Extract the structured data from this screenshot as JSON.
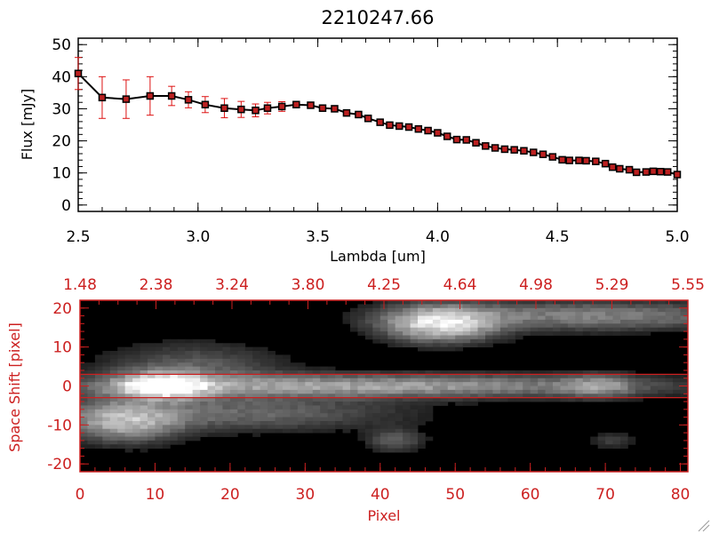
{
  "colors": {
    "background": "#ffffff",
    "axis_black": "#000000",
    "axis_red": "#cc2020",
    "error_bars": "#dd1111",
    "marker_fill": "#bb2020",
    "image_background": "#000000"
  },
  "chart_data": [
    {
      "type": "line",
      "title": "2210247.66",
      "xlabel": "Lambda [um]",
      "ylabel": "Flux [mJy]",
      "xlim": [
        2.5,
        5.0
      ],
      "ylim": [
        -2,
        52
      ],
      "xticks": [
        "2.5",
        "3.0",
        "3.5",
        "4.0",
        "4.5",
        "5.0"
      ],
      "yticks": [
        "0",
        "10",
        "20",
        "30",
        "40",
        "50"
      ],
      "grid": false,
      "series": [
        {
          "x": [
            2.5,
            2.6,
            2.7,
            2.8,
            2.89,
            2.96,
            3.03,
            3.11,
            3.18,
            3.24,
            3.29,
            3.35,
            3.41,
            3.47,
            3.52,
            3.57,
            3.62,
            3.67,
            3.71,
            3.76,
            3.8,
            3.84,
            3.88,
            3.92,
            3.96,
            4.0,
            4.04,
            4.08,
            4.12,
            4.16,
            4.2,
            4.24,
            4.28,
            4.32,
            4.36,
            4.4,
            4.44,
            4.48,
            4.52,
            4.55,
            4.59,
            4.62,
            4.66,
            4.7,
            4.73,
            4.76,
            4.8,
            4.83,
            4.87,
            4.9,
            4.93,
            4.96,
            5.0
          ],
          "y": [
            41,
            33.5,
            33,
            34,
            34,
            32.8,
            31.3,
            30.2,
            29.8,
            29.5,
            30.2,
            30.7,
            31.3,
            31.1,
            30.2,
            30.0,
            28.7,
            28.2,
            27.0,
            25.8,
            24.9,
            24.6,
            24.3,
            23.7,
            23.2,
            22.5,
            21.4,
            20.4,
            20.3,
            19.4,
            18.4,
            17.8,
            17.4,
            17.2,
            16.9,
            16.4,
            15.8,
            15.0,
            14.1,
            13.9,
            13.9,
            13.8,
            13.6,
            12.9,
            11.8,
            11.3,
            11.0,
            10.2,
            10.3,
            10.5,
            10.4,
            10.3,
            9.5
          ],
          "yerr": [
            5,
            6.5,
            6,
            6,
            3,
            2.5,
            2.5,
            3,
            2.5,
            2,
            1.8,
            1.5,
            1,
            0.8,
            0.8,
            0.8,
            0.8,
            0.8,
            0.8,
            0.8,
            0.8,
            0.8,
            0.8,
            0.8,
            0.8,
            0.8,
            0.8,
            0.8,
            0.8,
            0.8,
            0.8,
            0.8,
            0.8,
            0.8,
            0.8,
            0.8,
            0.8,
            0.8,
            0.8,
            0.8,
            0.8,
            0.8,
            0.8,
            0.8,
            0.8,
            0.8,
            0.8,
            0.8,
            0.8,
            0.8,
            0.8,
            0.8,
            0.8
          ]
        }
      ]
    },
    {
      "type": "heatmap",
      "xlabel": "Pixel",
      "ylabel": "Space Shift [pixel]",
      "xlim": [
        0,
        81
      ],
      "ylim": [
        -22,
        22
      ],
      "xticks": [
        "0",
        "10",
        "20",
        "30",
        "40",
        "50",
        "60",
        "70",
        "80"
      ],
      "yticks": [
        "-20",
        "-10",
        "0",
        "10",
        "20"
      ],
      "top_ticks": [
        "1.48",
        "2.38",
        "3.24",
        "3.80",
        "4.25",
        "4.64",
        "4.98",
        "5.29",
        "5.55"
      ],
      "extraction_band": [
        -3,
        3
      ],
      "sources": [
        {
          "x": 11,
          "y": 0,
          "sx": 4,
          "sy": 2.2,
          "amp": 1.0
        },
        {
          "x": 38,
          "y": 0,
          "sx": 26,
          "sy": 2.0,
          "amp": 0.55
        },
        {
          "x": 69,
          "y": 0,
          "sx": 3,
          "sy": 2.0,
          "amp": 0.35
        },
        {
          "x": 6,
          "y": -9,
          "sx": 5,
          "sy": 3.5,
          "amp": 0.6
        },
        {
          "x": 22,
          "y": -7,
          "sx": 14,
          "sy": 3.0,
          "amp": 0.3
        },
        {
          "x": 15,
          "y": 5,
          "sx": 8,
          "sy": 4.0,
          "amp": 0.25
        },
        {
          "x": 48,
          "y": 16,
          "sx": 5,
          "sy": 3.0,
          "amp": 0.85
        },
        {
          "x": 68,
          "y": 18,
          "sx": 15,
          "sy": 2.5,
          "amp": 0.4
        },
        {
          "x": 42,
          "y": -14,
          "sx": 2.5,
          "sy": 2.0,
          "amp": 0.25
        },
        {
          "x": 71,
          "y": -14,
          "sx": 2.0,
          "sy": 1.5,
          "amp": 0.15
        }
      ]
    }
  ]
}
